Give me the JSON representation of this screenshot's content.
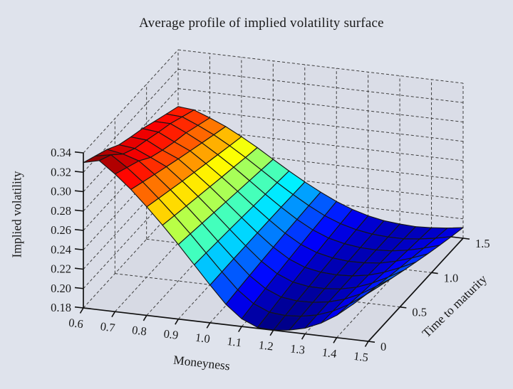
{
  "chart_data": {
    "type": "surface",
    "title": "Average profile of implied volatility surface",
    "xlabel": "Moneyness",
    "ylabel": "Time to maturity",
    "zlabel": "Implied volatility",
    "x": [
      0.6,
      0.65,
      0.7,
      0.75,
      0.8,
      0.85,
      0.9,
      0.95,
      1.0,
      1.05,
      1.1,
      1.15,
      1.2,
      1.25,
      1.3,
      1.35,
      1.4,
      1.45,
      1.5
    ],
    "y": [
      0,
      0.1875,
      0.375,
      0.5625,
      0.75,
      0.9375,
      1.125,
      1.3125,
      1.5
    ],
    "z": [
      [
        0.33,
        0.334,
        0.322,
        0.308,
        0.292,
        0.275,
        0.257,
        0.238,
        0.219,
        0.201,
        0.188,
        0.181,
        0.18,
        0.182,
        0.186,
        0.193,
        0.203,
        0.216,
        0.23
      ],
      [
        0.3275,
        0.3308,
        0.3193,
        0.3059,
        0.2905,
        0.2741,
        0.2568,
        0.2385,
        0.2204,
        0.2033,
        0.1906,
        0.1835,
        0.1819,
        0.1831,
        0.1864,
        0.1924,
        0.2013,
        0.2129,
        0.2255
      ],
      [
        0.325,
        0.322,
        0.3165,
        0.3038,
        0.289,
        0.2733,
        0.2565,
        0.239,
        0.2218,
        0.2055,
        0.1933,
        0.186,
        0.1838,
        0.1843,
        0.1868,
        0.1918,
        0.1995,
        0.2098,
        0.221
      ],
      [
        0.32,
        0.318,
        0.31,
        0.3016,
        0.2875,
        0.2724,
        0.2563,
        0.2395,
        0.2231,
        0.2078,
        0.1959,
        0.1885,
        0.1856,
        0.1854,
        0.1871,
        0.1911,
        0.1978,
        0.2066,
        0.2165
      ],
      [
        0.3185,
        0.317,
        0.3075,
        0.2995,
        0.286,
        0.2715,
        0.256,
        0.24,
        0.2245,
        0.21,
        0.1985,
        0.191,
        0.1875,
        0.1865,
        0.1875,
        0.1905,
        0.196,
        0.2035,
        0.212
      ],
      [
        0.3175,
        0.3155,
        0.306,
        0.2974,
        0.2845,
        0.2706,
        0.2558,
        0.2405,
        0.2259,
        0.2123,
        0.2011,
        0.1935,
        0.1894,
        0.1876,
        0.1879,
        0.1899,
        0.1943,
        0.2004,
        0.2075
      ],
      [
        0.315,
        0.3145,
        0.3055,
        0.2953,
        0.283,
        0.2698,
        0.2555,
        0.241,
        0.2273,
        0.2145,
        0.2038,
        0.196,
        0.1913,
        0.1888,
        0.1883,
        0.1893,
        0.1925,
        0.1973,
        0.203
      ],
      [
        0.3125,
        0.3113,
        0.3028,
        0.2931,
        0.2815,
        0.2689,
        0.2553,
        0.2415,
        0.2286,
        0.2168,
        0.2064,
        0.1985,
        0.1931,
        0.1899,
        0.1886,
        0.1886,
        0.1908,
        0.1941,
        0.1985
      ],
      [
        0.31,
        0.308,
        0.3,
        0.291,
        0.28,
        0.268,
        0.255,
        0.242,
        0.23,
        0.219,
        0.209,
        0.201,
        0.195,
        0.191,
        0.189,
        0.188,
        0.189,
        0.191,
        0.194
      ]
    ],
    "x_ticks": [
      "0.6",
      "0.7",
      "0.8",
      "0.9",
      "1.0",
      "1.1",
      "1.2",
      "1.3",
      "1.4",
      "1.5"
    ],
    "y_ticks": [
      "0",
      "0.5",
      "1.0",
      "1.5"
    ],
    "z_ticks": [
      "0.18",
      "0.20",
      "0.22",
      "0.24",
      "0.26",
      "0.28",
      "0.30",
      "0.32",
      "0.34"
    ],
    "xlim": [
      0.6,
      1.5
    ],
    "ylim": [
      0,
      1.5
    ],
    "zlim": [
      0.18,
      0.34
    ],
    "colormap": "jet",
    "grid": "dashed",
    "legend": "none",
    "colors": {
      "background": "#dfe3ec",
      "wall": "#dadde7",
      "floor": "#d7dae4",
      "grid_line": "#3f3f3f",
      "axis_line": "#111111",
      "mesh_edge": "#161616",
      "text": "#1a1a1a"
    }
  }
}
